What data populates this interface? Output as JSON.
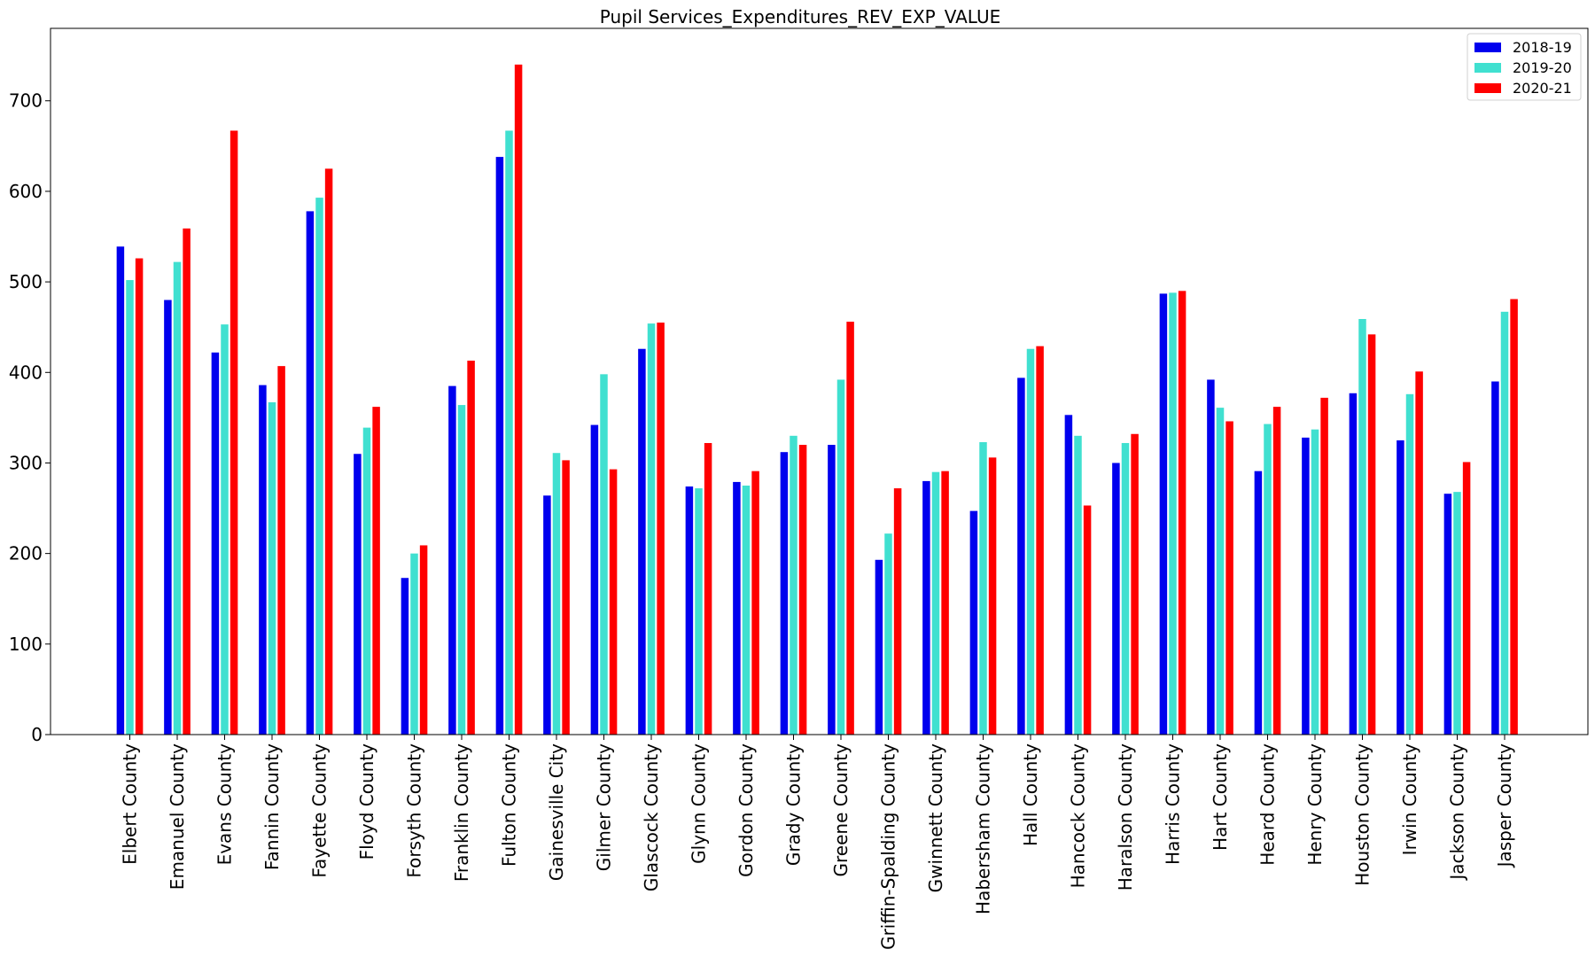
{
  "chart_data": {
    "type": "bar",
    "title": "Pupil Services_Expenditures_REV_EXP_VALUE",
    "xlabel": "",
    "ylabel": "",
    "ylim": [
      0,
      780
    ],
    "yticks": [
      0,
      100,
      200,
      300,
      400,
      500,
      600,
      700
    ],
    "grid": false,
    "legend_position": "top-right",
    "categories": [
      "Elbert County",
      "Emanuel County",
      "Evans County",
      "Fannin County",
      "Fayette County",
      "Floyd County",
      "Forsyth County",
      "Franklin County",
      "Fulton County",
      "Gainesville City",
      "Gilmer County",
      "Glascock County",
      "Glynn County",
      "Gordon County",
      "Grady County",
      "Greene County",
      "Griffin-Spalding County",
      "Gwinnett County",
      "Habersham County",
      "Hall County",
      "Hancock County",
      "Haralson County",
      "Harris County",
      "Hart County",
      "Heard County",
      "Henry County",
      "Houston County",
      "Irwin County",
      "Jackson County",
      "Jasper County"
    ],
    "series": [
      {
        "name": "2018-19",
        "color": "#0000ee",
        "values": [
          539,
          480,
          422,
          386,
          578,
          310,
          173,
          385,
          638,
          264,
          342,
          426,
          274,
          279,
          312,
          320,
          193,
          280,
          247,
          394,
          353,
          300,
          487,
          392,
          291,
          328,
          377,
          325,
          266,
          390
        ]
      },
      {
        "name": "2019-20",
        "color": "#40e0d0",
        "values": [
          502,
          522,
          453,
          367,
          593,
          339,
          200,
          364,
          667,
          311,
          398,
          454,
          272,
          275,
          330,
          392,
          222,
          290,
          323,
          426,
          330,
          322,
          488,
          361,
          343,
          337,
          459,
          376,
          268,
          467
        ]
      },
      {
        "name": "2020-21",
        "color": "#ff0000",
        "values": [
          526,
          559,
          667,
          407,
          625,
          362,
          209,
          413,
          740,
          303,
          293,
          455,
          322,
          291,
          320,
          456,
          272,
          291,
          306,
          429,
          253,
          332,
          490,
          346,
          362,
          372,
          442,
          401,
          301,
          481
        ]
      }
    ]
  }
}
